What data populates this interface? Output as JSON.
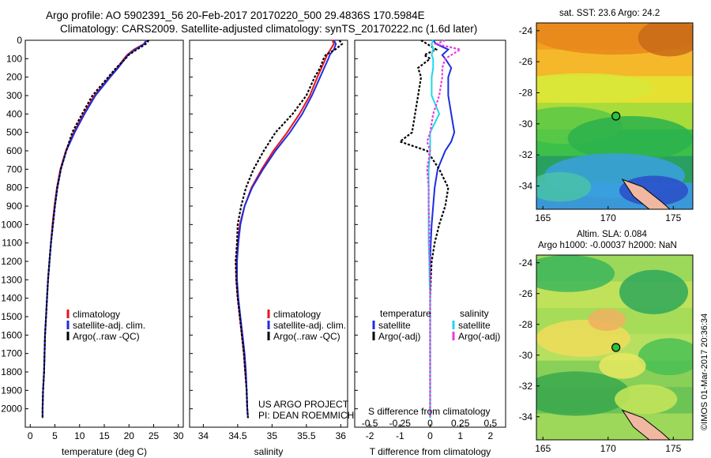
{
  "header": {
    "title_line1": "Argo profile: AO 5902391_56 20-Feb-2017 20170220_500 29.4836S 170.5984E",
    "title_line2": "Climatology: CARS2009. Satellite-adjusted climatology: synTS_20170222.nc (1.6d later)"
  },
  "colors": {
    "climatology": "#e8141c",
    "satellite": "#1c2ee0",
    "argo": "#000000",
    "sat_s": "#22d6e8",
    "argo_adj": "#e83ce0"
  },
  "chart_data": [
    {
      "type": "line",
      "xlabel": "temperature (deg C)",
      "ylabel": "",
      "xlim": [
        -1,
        31
      ],
      "ylim": [
        2100,
        0
      ],
      "xticks": [
        "0",
        "5",
        "10",
        "15",
        "20",
        "25",
        "30"
      ],
      "yticks": [
        "0",
        "100",
        "200",
        "300",
        "400",
        "500",
        "600",
        "700",
        "800",
        "900",
        "1000",
        "1100",
        "1200",
        "1300",
        "1400",
        "1500",
        "1600",
        "1700",
        "1800",
        "1900",
        "2000"
      ],
      "legend": [
        "climatology",
        "satellite-adj. clim.",
        "Argo(..raw -QC)"
      ],
      "legend_position": "bottom-right",
      "depth": [
        0,
        20,
        50,
        80,
        100,
        150,
        200,
        300,
        400,
        500,
        600,
        700,
        800,
        900,
        1000,
        1100,
        1200,
        1300,
        1400,
        1500,
        1600,
        1700,
        1800,
        1900,
        2000,
        2050
      ],
      "series": [
        {
          "name": "climatology",
          "values": [
            23.5,
            23.0,
            21.0,
            19.6,
            19.0,
            17.6,
            16.0,
            13.0,
            10.8,
            8.8,
            7.2,
            6.1,
            5.4,
            4.9,
            4.5,
            4.2,
            3.9,
            3.6,
            3.4,
            3.2,
            3.0,
            2.9,
            2.8,
            2.6,
            2.5,
            2.5
          ]
        },
        {
          "name": "satellite-adj. clim.",
          "values": [
            23.6,
            23.1,
            21.3,
            19.8,
            19.2,
            17.8,
            16.2,
            13.2,
            11.0,
            9.0,
            7.3,
            6.2,
            5.5,
            5.0,
            4.6,
            4.2,
            3.9,
            3.6,
            3.4,
            3.2,
            3.0,
            2.9,
            2.8,
            2.6,
            2.5,
            2.5
          ]
        },
        {
          "name": "Argo(..raw -QC)",
          "values": [
            24.0,
            23.4,
            21.6,
            19.9,
            19.3,
            17.4,
            15.8,
            12.6,
            10.5,
            8.5,
            7.3,
            6.2,
            5.5,
            5.0,
            4.6,
            4.2,
            3.9,
            3.6,
            3.4,
            3.2,
            3.0,
            2.9,
            2.8,
            2.6,
            2.5,
            2.5
          ]
        }
      ]
    },
    {
      "type": "line",
      "xlabel": "salinity",
      "ylabel": "",
      "xlim": [
        33.8,
        36.1
      ],
      "ylim": [
        2100,
        0
      ],
      "xticks": [
        "34",
        "34.5",
        "35",
        "35.5",
        "36"
      ],
      "legend": [
        "climatology",
        "satellite-adj. clim.",
        "Argo(..raw -QC)"
      ],
      "legend_position": "bottom-right",
      "annotation_line1": "US ARGO PROJECT",
      "annotation_line2": "PI: DEAN ROEMMICH",
      "depth": [
        0,
        20,
        50,
        80,
        100,
        150,
        200,
        300,
        400,
        500,
        600,
        700,
        800,
        900,
        1000,
        1100,
        1200,
        1300,
        1400,
        1500,
        1600,
        1700,
        1800,
        1900,
        2000,
        2050
      ],
      "series": [
        {
          "name": "climatology",
          "values": [
            35.88,
            35.9,
            35.85,
            35.8,
            35.78,
            35.72,
            35.66,
            35.55,
            35.4,
            35.22,
            35.02,
            34.85,
            34.7,
            34.6,
            34.53,
            34.5,
            34.48,
            34.48,
            34.5,
            34.53,
            34.56,
            34.59,
            34.61,
            34.63,
            34.64,
            34.65
          ]
        },
        {
          "name": "satellite-adj. clim.",
          "values": [
            35.9,
            35.93,
            35.9,
            35.84,
            35.82,
            35.76,
            35.7,
            35.58,
            35.44,
            35.26,
            35.05,
            34.87,
            34.71,
            34.6,
            34.54,
            34.51,
            34.49,
            34.49,
            34.51,
            34.54,
            34.57,
            34.6,
            34.62,
            34.63,
            34.64,
            34.65
          ]
        },
        {
          "name": "Argo(..raw -QC)",
          "values": [
            35.98,
            36.02,
            35.92,
            35.78,
            35.75,
            35.7,
            35.62,
            35.5,
            35.3,
            35.05,
            34.88,
            34.73,
            34.62,
            34.55,
            34.5,
            34.49,
            34.47,
            34.48,
            34.5,
            34.53,
            34.56,
            34.59,
            34.61,
            34.63,
            34.64,
            34.65
          ]
        }
      ]
    },
    {
      "type": "line",
      "xlabel": "T difference from climatology",
      "xlabel_top": "S difference from climatology",
      "xlim": [
        -2.5,
        2.5
      ],
      "ylim": [
        2100,
        0
      ],
      "xticks": [
        "-2",
        "-1",
        "0",
        "1",
        "2"
      ],
      "xticks_top": [
        "-0.5",
        "-0.25",
        "0",
        "0.25",
        "0.5"
      ],
      "legend_title_left": "temperature",
      "legend_title_right": "salinity",
      "legend": [
        "satellite",
        "Argo(-adj)",
        "satellite",
        "Argo(-adj)"
      ],
      "depth": [
        0,
        20,
        50,
        80,
        100,
        150,
        200,
        300,
        400,
        500,
        550,
        600,
        700,
        800,
        900,
        1000,
        1100,
        1200,
        1300,
        1400,
        1500,
        1600,
        1700,
        1800,
        1900,
        2000,
        2050
      ],
      "series": [
        {
          "name": "temperature satellite",
          "values": [
            0.1,
            0.2,
            0.6,
            0.4,
            0.5,
            0.7,
            0.6,
            0.6,
            0.7,
            0.8,
            0.7,
            0.5,
            0.25,
            0.15,
            0.1,
            0.05,
            0.02,
            0.0,
            0.0,
            0.0,
            0.0,
            0.0,
            0.0,
            0.0,
            0.0,
            0.0,
            0.0
          ]
        },
        {
          "name": "temperature Argo(-adj)",
          "values": [
            -0.3,
            -0.1,
            0.2,
            -0.2,
            0.0,
            -0.4,
            -0.3,
            -0.4,
            -0.5,
            -0.6,
            -1.0,
            -0.1,
            0.3,
            0.6,
            0.5,
            0.3,
            0.15,
            0.05,
            0.02,
            0.0,
            0.0,
            0.0,
            0.0,
            0.0,
            0.0,
            0.0,
            0.0
          ]
        },
        {
          "name": "salinity satellite",
          "values": [
            0.1,
            0.05,
            0.1,
            0.05,
            0.1,
            0.1,
            0.05,
            0.05,
            0.3,
            0.0,
            0.0,
            0.0,
            -0.05,
            -0.05,
            -0.05,
            -0.05,
            -0.05,
            -0.03,
            -0.02,
            0.0,
            0.0,
            0.0,
            0.0,
            0.0,
            0.0,
            0.0,
            0.0
          ]
        },
        {
          "name": "salinity Argo(-adj)",
          "values": [
            0.5,
            0.2,
            1.0,
            0.7,
            0.5,
            0.4,
            0.4,
            0.3,
            0.1,
            0.0,
            -0.1,
            0.0,
            -0.1,
            -0.05,
            -0.05,
            -0.03,
            -0.02,
            -0.01,
            0.0,
            0.0,
            0.0,
            0.0,
            0.0,
            0.0,
            0.0,
            0.0,
            0.0
          ]
        }
      ]
    },
    {
      "type": "heatmap",
      "title": "sat. SST: 23.6 Argo: 24.2",
      "xlim": [
        164.5,
        176.5
      ],
      "ylim": [
        -35.5,
        -23.5
      ],
      "xticks": [
        "165",
        "170",
        "175"
      ],
      "yticks": [
        "-24",
        "-26",
        "-28",
        "-30",
        "-32",
        "-34"
      ],
      "marker": {
        "lon": 170.6,
        "lat": -29.5
      }
    },
    {
      "type": "heatmap",
      "title_line1": "Altim. SLA: 0.084",
      "title_line2": "Argo h1000: -0.00037 h2000: NaN",
      "xlim": [
        164.5,
        176.5
      ],
      "ylim": [
        -35.5,
        -23.5
      ],
      "xticks": [
        "165",
        "170",
        "175"
      ],
      "yticks": [
        "-24",
        "-26",
        "-28",
        "-30",
        "-32",
        "-34"
      ],
      "marker": {
        "lon": 170.6,
        "lat": -29.5
      }
    }
  ],
  "credit": "©IMOS 01-Mar-2017 20:36:34"
}
